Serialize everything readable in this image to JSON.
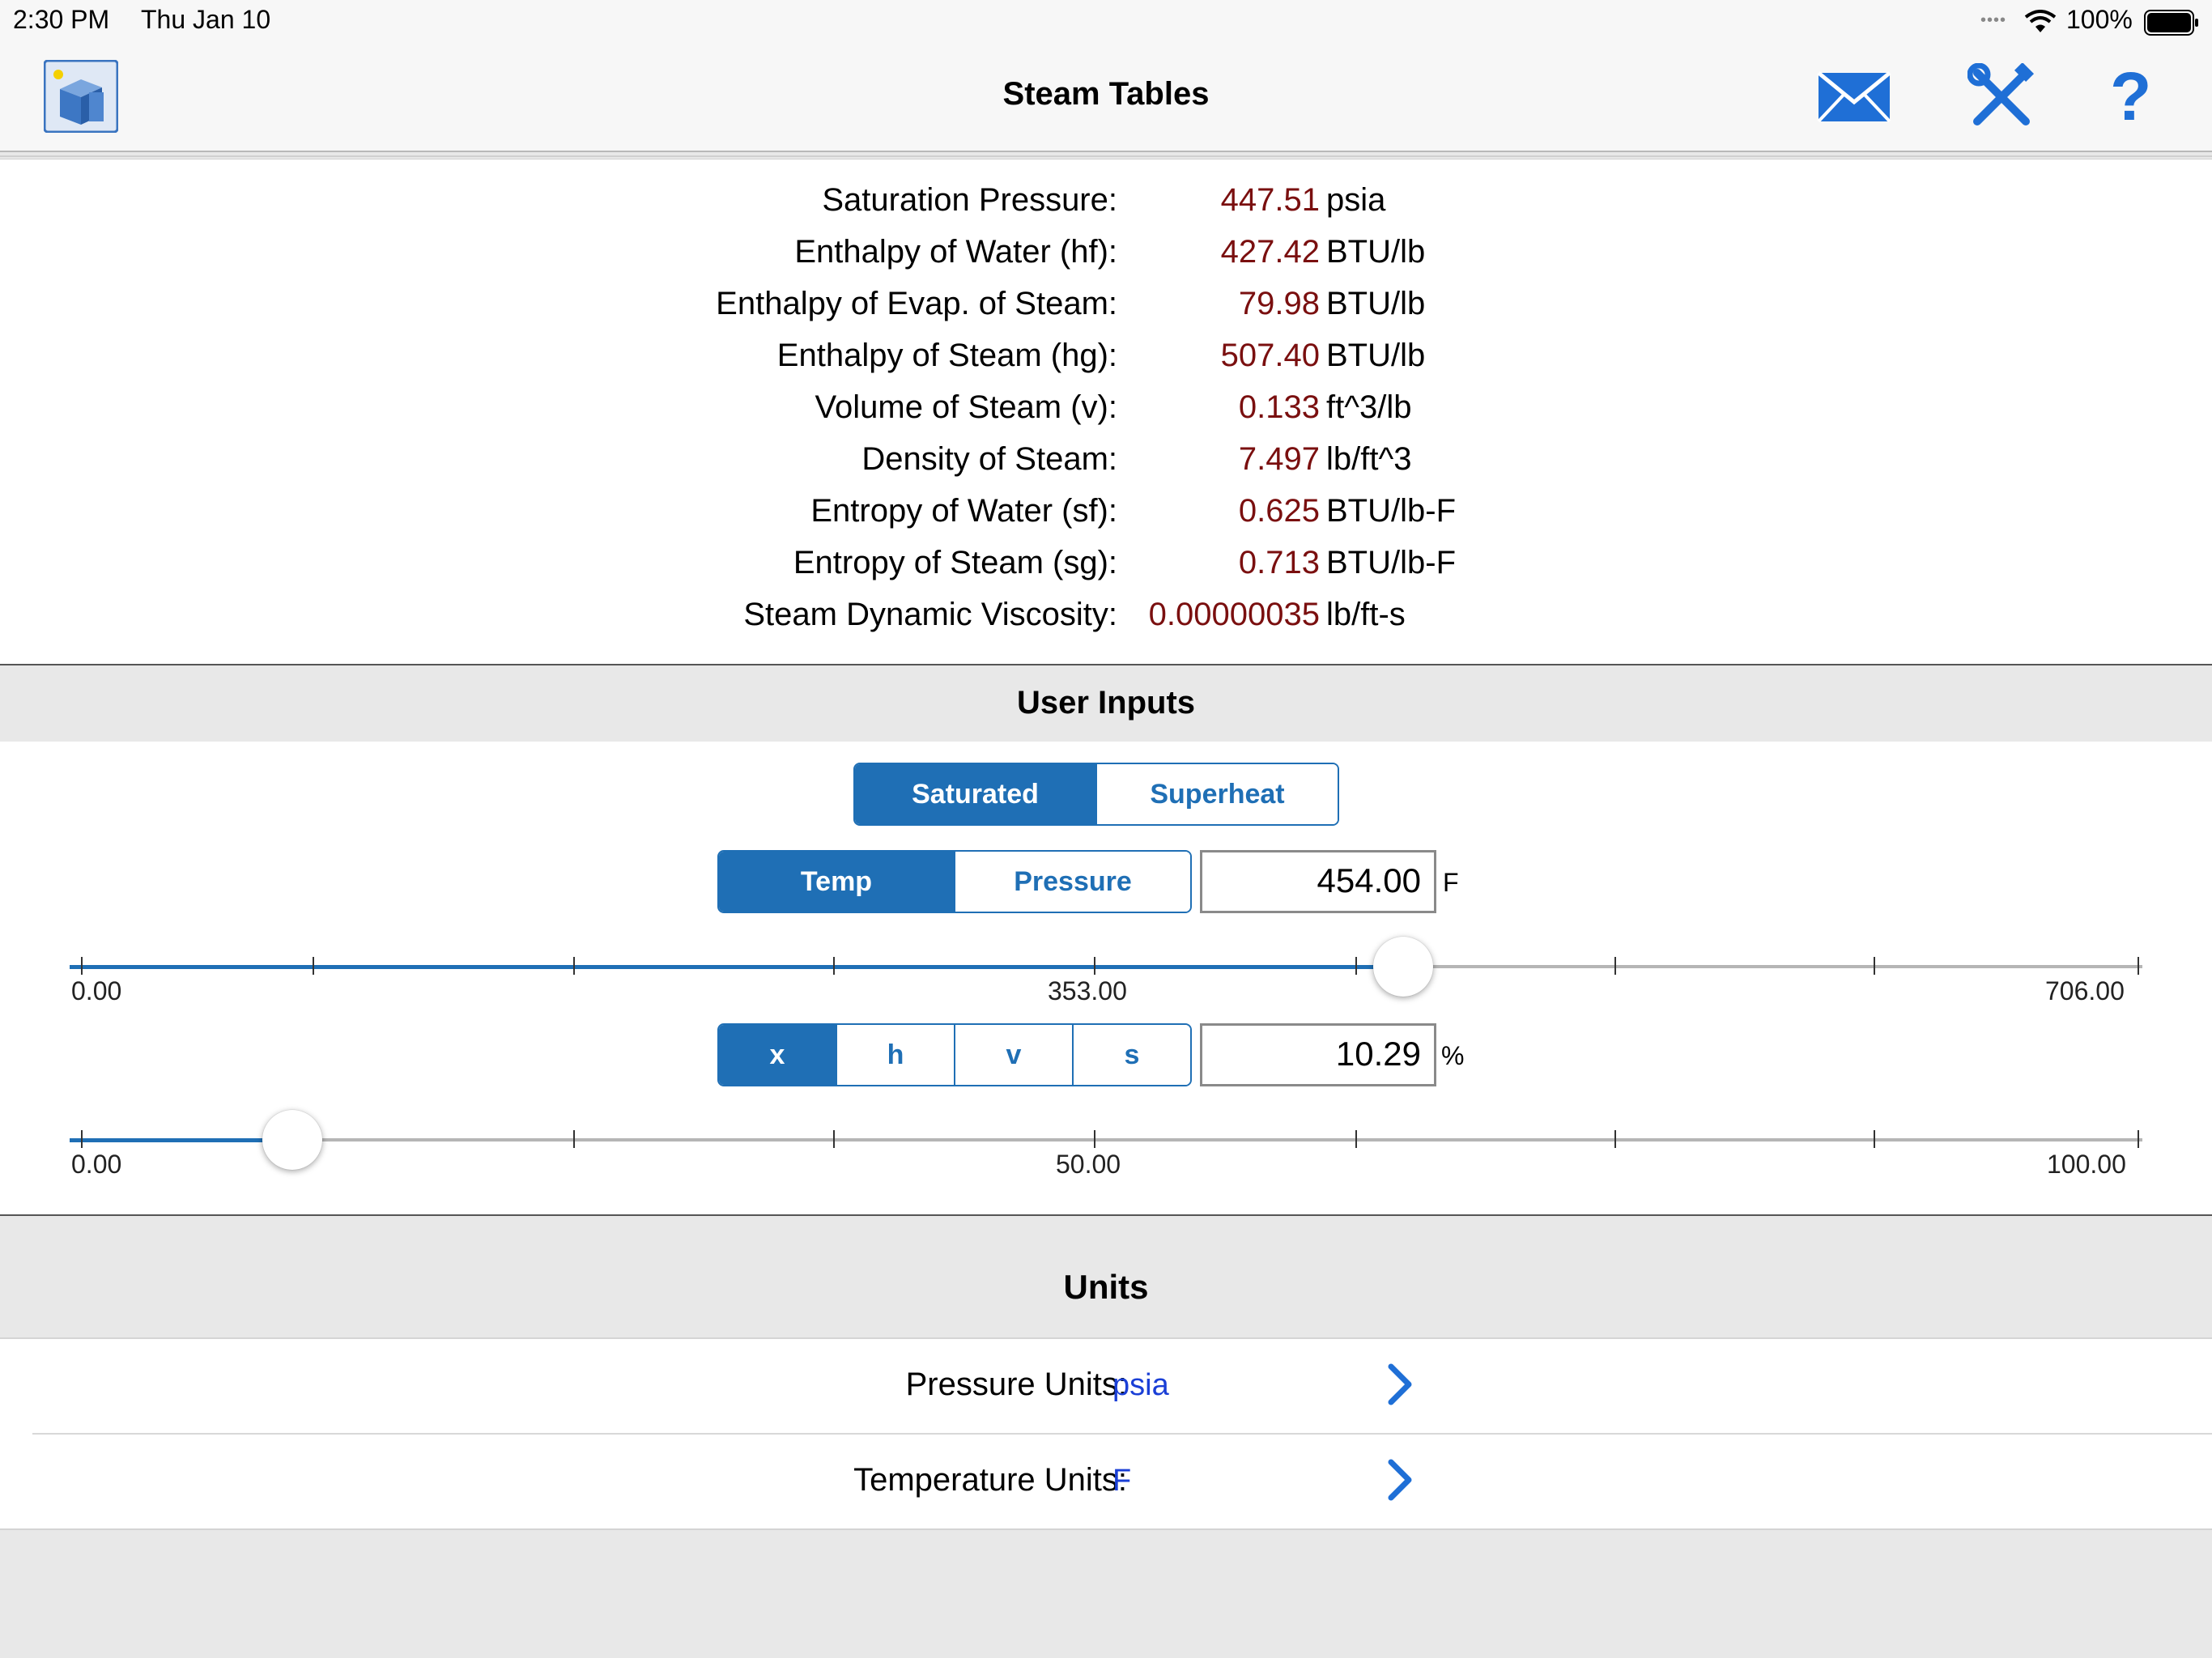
{
  "status_bar": {
    "time": "2:30 PM",
    "date": "Thu Jan 10",
    "battery": "100%"
  },
  "nav": {
    "title": "Steam Tables",
    "icons": [
      "app-logo-icon",
      "mail-icon",
      "tools-icon",
      "help-icon"
    ]
  },
  "results": [
    {
      "label": "Saturation Pressure:",
      "value": "447.51",
      "unit": "psia"
    },
    {
      "label": "Enthalpy of Water (hf):",
      "value": "427.42",
      "unit": "BTU/lb"
    },
    {
      "label": "Enthalpy of Evap. of Steam:",
      "value": "79.98",
      "unit": "BTU/lb"
    },
    {
      "label": "Enthalpy of Steam (hg):",
      "value": "507.40",
      "unit": "BTU/lb"
    },
    {
      "label": "Volume of Steam (v):",
      "value": "0.133",
      "unit": "ft^3/lb"
    },
    {
      "label": "Density of Steam:",
      "value": "7.497",
      "unit": "lb/ft^3"
    },
    {
      "label": "Entropy of Water (sf):",
      "value": "0.625",
      "unit": "BTU/lb-F"
    },
    {
      "label": "Entropy of Steam (sg):",
      "value": "0.713",
      "unit": "BTU/lb-F"
    },
    {
      "label": "Steam Dynamic Viscosity:",
      "value": "0.00000035",
      "unit": "lb/ft-s"
    }
  ],
  "user_inputs": {
    "header": "User Inputs",
    "state_segment": {
      "items": [
        "Saturated",
        "Superheat"
      ],
      "selected": 0
    },
    "basis_segment": {
      "items": [
        "Temp",
        "Pressure"
      ],
      "selected": 0
    },
    "temp_value": "454.00",
    "temp_unit": "F",
    "temp_slider": {
      "min_label": "0.00",
      "mid_label": "353.00",
      "max_label": "706.00",
      "min": 0,
      "max": 706,
      "value": 454
    },
    "prop_segment": {
      "items": [
        "x",
        "h",
        "v",
        "s"
      ],
      "selected": 0
    },
    "prop_value": "10.29",
    "prop_unit": "%",
    "prop_slider": {
      "min_label": "0.00",
      "mid_label": "50.00",
      "max_label": "100.00",
      "min": 0,
      "max": 100,
      "value": 10.29
    }
  },
  "units": {
    "header": "Units",
    "rows": [
      {
        "label": "Pressure Units:",
        "value": "psia"
      },
      {
        "label": "Temperature Units:",
        "value": "F"
      }
    ]
  },
  "colors": {
    "accent": "#1f6fb5",
    "result_value": "#7a0f0f",
    "unit_value": "#1a3fd6"
  }
}
